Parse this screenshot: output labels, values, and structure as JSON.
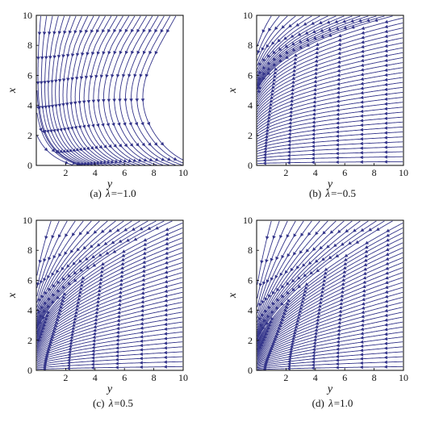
{
  "figure": {
    "line_color": "#33348a",
    "axis_color": "#000000"
  },
  "chart_data": [
    {
      "type": "streamplot",
      "panel": "a",
      "caption": {
        "letter": "(a)",
        "lambda_symbol": "λ",
        "equals": "=",
        "value": "−1.0"
      },
      "xlabel": "y",
      "ylabel": "x",
      "xlim": [
        0,
        10
      ],
      "ylim": [
        0,
        10
      ],
      "xticks": [
        "2",
        "4",
        "6",
        "8",
        "10"
      ],
      "yticks": [
        "0",
        "2",
        "4",
        "6",
        "8",
        "10"
      ],
      "lambda": -1.0
    },
    {
      "type": "streamplot",
      "panel": "b",
      "caption": {
        "letter": "(b)",
        "lambda_symbol": "λ",
        "equals": "=",
        "value": "−0.5"
      },
      "xlabel": "y",
      "ylabel": "x",
      "xlim": [
        0,
        10
      ],
      "ylim": [
        0,
        10
      ],
      "xticks": [
        "2",
        "4",
        "6",
        "8",
        "10"
      ],
      "yticks": [
        "0",
        "2",
        "4",
        "6",
        "8",
        "10"
      ],
      "lambda": -0.5
    },
    {
      "type": "streamplot",
      "panel": "c",
      "caption": {
        "letter": "(c)",
        "lambda_symbol": "λ",
        "equals": "=",
        "value": "0.5"
      },
      "xlabel": "y",
      "ylabel": "x",
      "xlim": [
        0,
        10
      ],
      "ylim": [
        0,
        10
      ],
      "xticks": [
        "2",
        "4",
        "6",
        "8",
        "10"
      ],
      "yticks": [
        "0",
        "2",
        "4",
        "6",
        "8",
        "10"
      ],
      "lambda": 0.5
    },
    {
      "type": "streamplot",
      "panel": "d",
      "caption": {
        "letter": "(d)",
        "lambda_symbol": "λ",
        "equals": "=",
        "value": "1.0"
      },
      "xlabel": "y",
      "ylabel": "x",
      "xlim": [
        0,
        10
      ],
      "ylim": [
        0,
        10
      ],
      "xticks": [
        "2",
        "4",
        "6",
        "8",
        "10"
      ],
      "yticks": [
        "0",
        "2",
        "4",
        "6",
        "8",
        "10"
      ],
      "lambda": 1.0
    }
  ]
}
